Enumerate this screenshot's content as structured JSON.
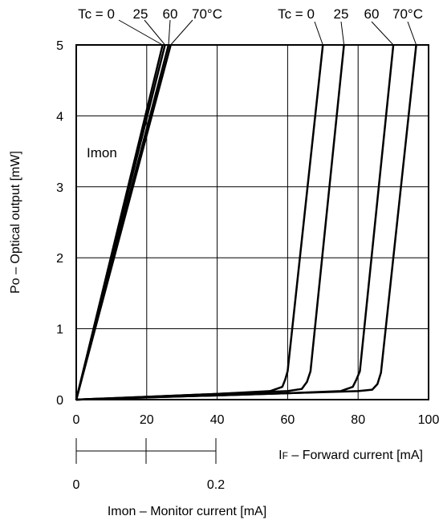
{
  "chart_data": {
    "type": "line",
    "ylabel": "Po – Optical output [mW]",
    "xlabel": "IF – Forward current [mA]",
    "xlabel_prefix": "I",
    "xlabel_sub": "F",
    "xlabel_rest": " – Forward current [mA]",
    "secondary_xlabel": "Imon – Monitor current [mA]",
    "xlim": [
      0,
      100
    ],
    "ylim": [
      0,
      5
    ],
    "x_ticks": [
      "0",
      "20",
      "40",
      "60",
      "80",
      "100"
    ],
    "y_ticks": [
      "0",
      "1",
      "2",
      "3",
      "4",
      "5"
    ],
    "secondary_x_ticks": [
      "0",
      "0.2"
    ],
    "grid": true,
    "annotations": {
      "imon_label": "Imon",
      "temp_labels_left": [
        "Tc = 0",
        "25",
        "60",
        "70°C"
      ],
      "temp_labels_right": [
        "Tc = 0",
        "25",
        "60",
        "70°C"
      ]
    },
    "series": [
      {
        "group": "Imon",
        "x": [
          0,
          24.5
        ],
        "y": [
          0,
          5
        ]
      },
      {
        "group": "Imon",
        "x": [
          0,
          25.2
        ],
        "y": [
          0,
          5
        ]
      },
      {
        "group": "Imon",
        "x": [
          0,
          26.2
        ],
        "y": [
          0,
          5
        ]
      },
      {
        "group": "Imon",
        "x": [
          0,
          26.8
        ],
        "y": [
          0,
          5
        ]
      },
      {
        "group": "IF",
        "x": [
          0,
          20,
          40,
          55,
          58.5,
          59.3,
          60,
          70
        ],
        "y": [
          0,
          0.04,
          0.08,
          0.12,
          0.18,
          0.28,
          0.4,
          5
        ]
      },
      {
        "group": "IF",
        "x": [
          0,
          20,
          40,
          60,
          64,
          65.5,
          66.5,
          76
        ],
        "y": [
          0,
          0.04,
          0.08,
          0.12,
          0.15,
          0.25,
          0.4,
          5
        ]
      },
      {
        "group": "IF",
        "x": [
          0,
          20,
          40,
          60,
          75,
          78.5,
          79.5,
          80.5,
          90
        ],
        "y": [
          0,
          0.03,
          0.06,
          0.09,
          0.12,
          0.18,
          0.28,
          0.4,
          5
        ]
      },
      {
        "group": "IF",
        "x": [
          0,
          20,
          40,
          60,
          80,
          84,
          85.5,
          86.5,
          96.5
        ],
        "y": [
          0,
          0.03,
          0.06,
          0.09,
          0.12,
          0.14,
          0.22,
          0.38,
          5
        ]
      }
    ]
  }
}
